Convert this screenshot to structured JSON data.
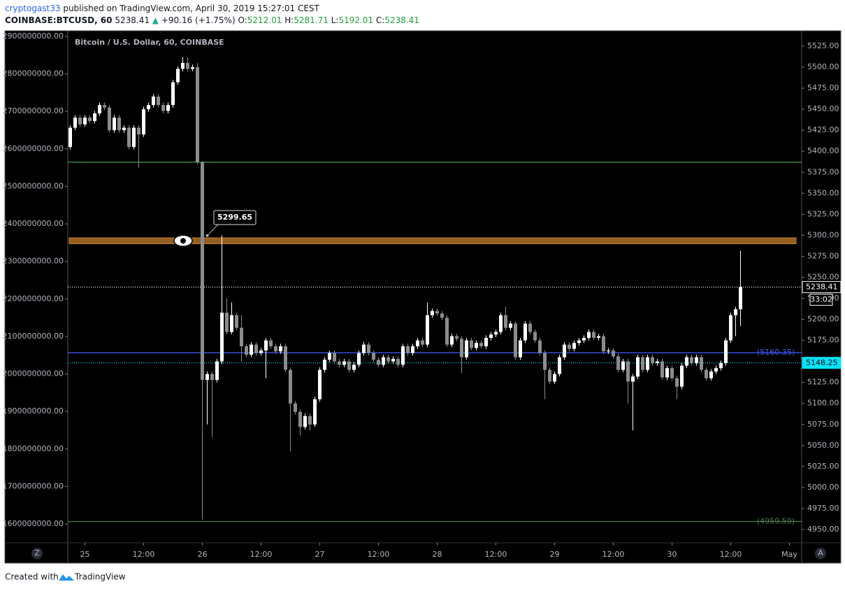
{
  "header": {
    "author": "cryptogast33",
    "published": "published on TradingView.com, April 30, 2019 15:27:01 CEST",
    "symbol": "COINBASE:BTCUSD, 60",
    "last": 5238.41,
    "change": "+90.16 (+1.75%)",
    "ohlc": [
      {
        "label": "O:",
        "value": 5212.01
      },
      {
        "label": "H:",
        "value": 5281.71
      },
      {
        "label": "L:",
        "value": 5192.01
      },
      {
        "label": "C:",
        "value": 5238.41
      }
    ]
  },
  "chart_data": {
    "type": "candlestick",
    "legend": "Bitcoin / U.S. Dollar, 60, COINBASE",
    "categories": [
      null,
      null,
      null,
      null,
      null,
      null,
      null,
      null,
      null,
      null,
      null,
      null,
      null,
      null,
      null,
      null,
      null,
      null,
      null,
      null,
      null,
      null,
      null,
      null,
      null,
      null,
      null,
      null,
      null,
      null,
      null,
      null,
      null,
      null,
      null,
      null,
      null,
      null,
      null,
      null,
      null,
      null,
      null,
      null,
      null,
      null,
      null,
      null,
      null,
      null,
      null,
      null,
      null,
      null,
      null,
      null,
      null,
      null,
      null,
      null,
      null,
      null,
      null,
      null,
      null,
      null,
      null,
      null,
      null,
      null,
      null,
      null,
      null,
      null,
      null,
      null,
      null,
      null,
      null,
      null,
      null,
      null,
      null,
      null,
      null,
      null,
      null,
      null,
      null,
      null,
      null,
      null,
      null,
      null,
      null,
      null,
      null,
      null,
      null,
      null,
      null,
      null,
      null,
      null,
      null,
      null,
      null,
      null,
      null,
      null,
      null,
      null,
      null,
      null,
      null,
      null,
      null,
      null,
      null,
      null,
      null,
      null,
      null,
      null,
      null,
      null,
      null,
      null,
      null,
      null,
      null,
      null,
      null,
      null,
      null,
      null,
      null,
      null
    ],
    "open": [
      5405,
      5428,
      5440,
      5432,
      5440,
      5436,
      5445,
      5455,
      5452,
      5425,
      5440,
      5425,
      5428,
      5405,
      5428,
      5420,
      5450,
      5455,
      5465,
      5455,
      5448,
      5455,
      5482,
      5498,
      5505,
      5498,
      5500,
      5387,
      5128,
      5135,
      5128,
      5150,
      5208,
      5185,
      5205,
      5190,
      5168,
      5158,
      5170,
      5160,
      5163,
      5175,
      5168,
      5162,
      5168,
      5140,
      5100,
      5090,
      5072,
      5085,
      5075,
      5105,
      5140,
      5152,
      5160,
      5150,
      5146,
      5150,
      5140,
      5146,
      5160,
      5170,
      5160,
      5152,
      5146,
      5155,
      5150,
      5153,
      5146,
      5168,
      5160,
      5168,
      5175,
      5170,
      5205,
      5210,
      5207,
      5202,
      5170,
      5180,
      5177,
      5155,
      5175,
      5166,
      5172,
      5168,
      5178,
      5182,
      5185,
      5205,
      5190,
      5195,
      5155,
      5175,
      5195,
      5185,
      5175,
      5160,
      5140,
      5126,
      5135,
      5155,
      5170,
      5165,
      5172,
      5175,
      5178,
      5185,
      5178,
      5180,
      5162,
      5163,
      5156,
      5140,
      5150,
      5126,
      5132,
      5155,
      5140,
      5155,
      5148,
      5150,
      5131,
      5142,
      5130,
      5120,
      5145,
      5155,
      5148,
      5155,
      5140,
      5130,
      5138,
      5142,
      5148,
      5175,
      5205,
      5212.01
    ],
    "high": [
      5431,
      5443,
      5443,
      5443,
      5443,
      5448,
      5458,
      5458,
      5455,
      5443,
      5443,
      5431,
      5431,
      5431,
      5431,
      5453,
      5458,
      5468,
      5468,
      5458,
      5458,
      5485,
      5501,
      5512,
      5512,
      5503,
      5505,
      5388,
      5138,
      5138,
      5153,
      5300,
      5225,
      5220,
      5208,
      5205,
      5171,
      5173,
      5173,
      5166,
      5178,
      5178,
      5171,
      5171,
      5171,
      5143,
      5103,
      5093,
      5088,
      5088,
      5108,
      5143,
      5155,
      5163,
      5163,
      5153,
      5153,
      5153,
      5149,
      5163,
      5173,
      5173,
      5163,
      5155,
      5158,
      5158,
      5156,
      5156,
      5171,
      5171,
      5171,
      5178,
      5178,
      5220,
      5213,
      5213,
      5210,
      5205,
      5183,
      5183,
      5180,
      5178,
      5178,
      5175,
      5175,
      5181,
      5185,
      5188,
      5208,
      5215,
      5198,
      5198,
      5178,
      5198,
      5198,
      5188,
      5178,
      5163,
      5143,
      5138,
      5158,
      5173,
      5173,
      5175,
      5178,
      5181,
      5188,
      5188,
      5183,
      5183,
      5166,
      5166,
      5159,
      5153,
      5153,
      5135,
      5158,
      5158,
      5158,
      5158,
      5153,
      5153,
      5145,
      5145,
      5133,
      5148,
      5158,
      5158,
      5158,
      5158,
      5143,
      5141,
      5145,
      5151,
      5178,
      5208,
      5215,
      5281.71
    ],
    "low": [
      5402,
      5425,
      5429,
      5429,
      5433,
      5433,
      5442,
      5449,
      5422,
      5422,
      5422,
      5422,
      5402,
      5402,
      5380,
      5417,
      5447,
      5452,
      5452,
      5445,
      5445,
      5452,
      5479,
      5495,
      5495,
      5495,
      5384,
      4962,
      5075,
      5060,
      5125,
      5147,
      5182,
      5182,
      5187,
      5150,
      5155,
      5155,
      5157,
      5157,
      5130,
      5165,
      5159,
      5159,
      5137,
      5043,
      5087,
      5062,
      5069,
      5068,
      5072,
      5102,
      5137,
      5149,
      5147,
      5143,
      5143,
      5137,
      5137,
      5143,
      5157,
      5157,
      5149,
      5143,
      5143,
      5147,
      5147,
      5143,
      5143,
      5157,
      5157,
      5165,
      5167,
      5167,
      5202,
      5204,
      5199,
      5167,
      5167,
      5174,
      5136,
      5152,
      5163,
      5163,
      5165,
      5165,
      5175,
      5179,
      5182,
      5187,
      5187,
      5152,
      5152,
      5172,
      5182,
      5172,
      5157,
      5105,
      5123,
      5123,
      5132,
      5152,
      5162,
      5162,
      5169,
      5172,
      5175,
      5175,
      5175,
      5159,
      5159,
      5153,
      5137,
      5137,
      5100,
      5068,
      5129,
      5137,
      5137,
      5145,
      5145,
      5128,
      5128,
      5127,
      5105,
      5117,
      5142,
      5145,
      5145,
      5137,
      5127,
      5127,
      5135,
      5139,
      5145,
      5172,
      5180,
      5192.01
    ],
    "close": [
      5428,
      5440,
      5432,
      5440,
      5436,
      5445,
      5455,
      5452,
      5425,
      5440,
      5425,
      5428,
      5405,
      5428,
      5420,
      5450,
      5455,
      5465,
      5455,
      5448,
      5455,
      5482,
      5498,
      5505,
      5498,
      5500,
      5387,
      5128,
      5135,
      5128,
      5150,
      5208,
      5185,
      5205,
      5190,
      5168,
      5158,
      5170,
      5160,
      5163,
      5175,
      5168,
      5162,
      5168,
      5140,
      5100,
      5090,
      5072,
      5085,
      5075,
      5105,
      5140,
      5152,
      5160,
      5150,
      5146,
      5150,
      5140,
      5146,
      5160,
      5170,
      5160,
      5152,
      5146,
      5155,
      5150,
      5153,
      5146,
      5168,
      5160,
      5168,
      5175,
      5170,
      5205,
      5210,
      5207,
      5202,
      5170,
      5180,
      5177,
      5155,
      5175,
      5166,
      5172,
      5168,
      5178,
      5182,
      5185,
      5205,
      5190,
      5195,
      5155,
      5175,
      5195,
      5185,
      5175,
      5160,
      5140,
      5126,
      5135,
      5155,
      5170,
      5165,
      5172,
      5175,
      5178,
      5185,
      5178,
      5180,
      5162,
      5163,
      5156,
      5140,
      5150,
      5126,
      5132,
      5155,
      5140,
      5155,
      5148,
      5150,
      5131,
      5142,
      5130,
      5120,
      5145,
      5155,
      5148,
      5155,
      5140,
      5130,
      5138,
      5142,
      5148,
      5175,
      5205,
      5212.01,
      5238.41
    ],
    "up_color": "#ffffff",
    "down_color": "#8c8c8c",
    "xlim": [
      -0.5,
      149.5
    ],
    "xticks": [
      {
        "value": 3,
        "label": "25"
      },
      {
        "value": 15,
        "label": "12:00"
      },
      {
        "value": 27,
        "label": "26"
      },
      {
        "value": 39,
        "label": "12:00"
      },
      {
        "value": 51,
        "label": "27"
      },
      {
        "value": 63,
        "label": "12:00"
      },
      {
        "value": 75,
        "label": "28"
      },
      {
        "value": 87,
        "label": "12:00"
      },
      {
        "value": 99,
        "label": "29"
      },
      {
        "value": 111,
        "label": "12:00"
      },
      {
        "value": 123,
        "label": "30"
      },
      {
        "value": 135,
        "label": "12:00"
      },
      {
        "value": 147,
        "label": "May"
      }
    ],
    "ylim": [
      4934.2,
      5543.3
    ],
    "yticks": [
      {
        "value": 4950,
        "label": "4950.00"
      },
      {
        "value": 4975,
        "label": "4975.00"
      },
      {
        "value": 5000,
        "label": "5000.00"
      },
      {
        "value": 5025,
        "label": "5025.00"
      },
      {
        "value": 5050,
        "label": "5050.00"
      },
      {
        "value": 5075,
        "label": "5075.00"
      },
      {
        "value": 5100,
        "label": "5100.00"
      },
      {
        "value": 5125,
        "label": "5125.00"
      },
      {
        "value": 5150,
        "label": "5150.00"
      },
      {
        "value": 5175,
        "label": "5175.00"
      },
      {
        "value": 5200,
        "label": "5200.00"
      },
      {
        "value": 5225,
        "label": "5225.00"
      },
      {
        "value": 5250,
        "label": "5250.00"
      },
      {
        "value": 5275,
        "label": "5275.00"
      },
      {
        "value": 5300,
        "label": "5300.00"
      },
      {
        "value": 5325,
        "label": "5325.00"
      },
      {
        "value": 5350,
        "label": "5350.00"
      },
      {
        "value": 5375,
        "label": "5375.00"
      },
      {
        "value": 5400,
        "label": "5400.00"
      },
      {
        "value": 5425,
        "label": "5425.00"
      },
      {
        "value": 5450,
        "label": "5450.00"
      },
      {
        "value": 5475,
        "label": "5475.00"
      },
      {
        "value": 5500,
        "label": "5500.00"
      },
      {
        "value": 5525,
        "label": "5525.00"
      }
    ],
    "y2lim": [
      1549641000,
      2914921000
    ],
    "y2ticks": [
      {
        "value": 1600000000,
        "label": "1600000000.00"
      },
      {
        "value": 1700000000,
        "label": "1700000000.00"
      },
      {
        "value": 1800000000,
        "label": "1800000000.00"
      },
      {
        "value": 1900000000,
        "label": "1900000000.00"
      },
      {
        "value": 2000000000,
        "label": "2000000000.00"
      },
      {
        "value": 2100000000,
        "label": "2100000000.00"
      },
      {
        "value": 2200000000,
        "label": "2200000000.00"
      },
      {
        "value": 2300000000,
        "label": "2300000000.00"
      },
      {
        "value": 2400000000,
        "label": "2400000000.00"
      },
      {
        "value": 2500000000,
        "label": "2500000000.00"
      },
      {
        "value": 2600000000,
        "label": "2600000000.00"
      },
      {
        "value": 2700000000,
        "label": "2700000000.00"
      },
      {
        "value": 2800000000,
        "label": "2800000000.00"
      },
      {
        "value": 2900000000,
        "label": "2900000000.00"
      }
    ],
    "band": {
      "values": [
        5290,
        5297
      ],
      "color": "#c47f2c"
    },
    "annotation": {
      "value": 5299.65
    },
    "levels": [
      {
        "value": 5387,
        "color": "#4caf50"
      },
      {
        "value": 4959.59,
        "color": "#4e7f4e",
        "value_label": "(4959.59)"
      },
      {
        "value": 5160.35,
        "color": "#3f5bff",
        "value_label": "(5160.35)"
      },
      {
        "value": 5148.25,
        "color": "#00e5ff",
        "dashed": true,
        "tag": true,
        "tag_fill": "#00e5ff",
        "tag_text": "#000000"
      },
      {
        "value": 5238.41,
        "color": "#ffffff",
        "dashed": true,
        "tag": true,
        "tag_fill": "#000000",
        "tag_text": "#ffffff",
        "countdown": "33:02"
      }
    ]
  },
  "buttons": [
    "Z",
    "A"
  ],
  "footer": {
    "text": "Created with",
    "brand": "TradingView"
  }
}
